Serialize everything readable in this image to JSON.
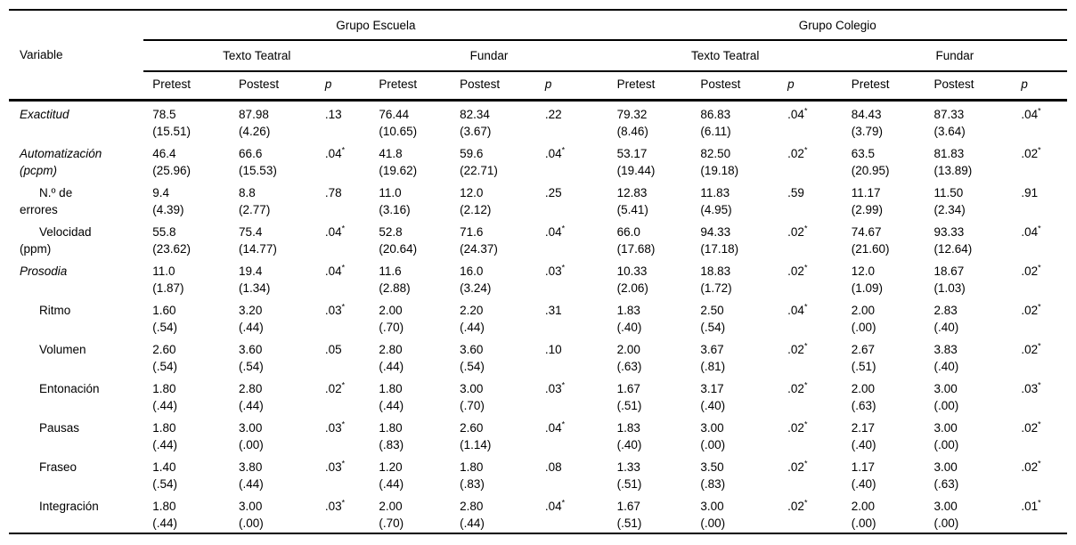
{
  "table": {
    "corner_header": "Variable",
    "asterisk": "*",
    "groups": [
      {
        "label": "Grupo Escuela",
        "conditions": [
          {
            "label": "Texto Teatral"
          },
          {
            "label": "Fundar"
          }
        ]
      },
      {
        "label": "Grupo Colegio",
        "conditions": [
          {
            "label": "Texto Teatral"
          },
          {
            "label": "Fundar"
          }
        ]
      }
    ],
    "measures": {
      "pretest": "Pretest",
      "postest": "Postest",
      "p": "p"
    },
    "rows": [
      {
        "label_lines": [
          "Exactitud"
        ],
        "italic": true,
        "indent": false,
        "cells": [
          {
            "v": "78.5",
            "sd": "(15.51)"
          },
          {
            "v": "87.98",
            "sd": "(4.26)"
          },
          {
            "v": ".13",
            "star": false
          },
          {
            "v": "76.44",
            "sd": "(10.65)"
          },
          {
            "v": "82.34",
            "sd": "(3.67)"
          },
          {
            "v": ".22",
            "star": false
          },
          {
            "v": "79.32",
            "sd": "(8.46)"
          },
          {
            "v": "86.83",
            "sd": "(6.11)"
          },
          {
            "v": ".04",
            "star": true
          },
          {
            "v": "84.43",
            "sd": "(3.79)"
          },
          {
            "v": "87.33",
            "sd": "(3.64)"
          },
          {
            "v": ".04",
            "star": true
          }
        ]
      },
      {
        "label_lines": [
          "Automatización",
          "(pcpm)"
        ],
        "italic": true,
        "indent": false,
        "cells": [
          {
            "v": "46.4",
            "sd": "(25.96)"
          },
          {
            "v": "66.6",
            "sd": "(15.53)"
          },
          {
            "v": ".04",
            "star": true
          },
          {
            "v": "41.8",
            "sd": "(19.62)"
          },
          {
            "v": "59.6",
            "sd": "(22.71)"
          },
          {
            "v": ".04",
            "star": true
          },
          {
            "v": "53.17",
            "sd": "(19.44)"
          },
          {
            "v": "82.50",
            "sd": "(19.18)"
          },
          {
            "v": ".02",
            "star": true
          },
          {
            "v": "63.5",
            "sd": "(20.95)"
          },
          {
            "v": "81.83",
            "sd": "(13.89)"
          },
          {
            "v": ".02",
            "star": true
          }
        ]
      },
      {
        "label_lines": [
          "N.º de",
          "errores"
        ],
        "italic": false,
        "indent": true,
        "cells": [
          {
            "v": "9.4",
            "sd": "(4.39)"
          },
          {
            "v": "8.8",
            "sd": "(2.77)"
          },
          {
            "v": ".78",
            "star": false
          },
          {
            "v": "11.0",
            "sd": "(3.16)"
          },
          {
            "v": "12.0",
            "sd": "(2.12)"
          },
          {
            "v": ".25",
            "star": false
          },
          {
            "v": "12.83",
            "sd": "(5.41)"
          },
          {
            "v": "11.83",
            "sd": "(4.95)"
          },
          {
            "v": ".59",
            "star": false
          },
          {
            "v": "11.17",
            "sd": "(2.99)"
          },
          {
            "v": "11.50",
            "sd": "(2.34)"
          },
          {
            "v": ".91",
            "star": false
          }
        ]
      },
      {
        "label_lines": [
          "Velocidad",
          "(ppm)"
        ],
        "italic": false,
        "indent": true,
        "cells": [
          {
            "v": "55.8",
            "sd": "(23.62)"
          },
          {
            "v": "75.4",
            "sd": "(14.77)"
          },
          {
            "v": ".04",
            "star": true
          },
          {
            "v": "52.8",
            "sd": "(20.64)"
          },
          {
            "v": "71.6",
            "sd": "(24.37)"
          },
          {
            "v": ".04",
            "star": true
          },
          {
            "v": "66.0",
            "sd": "(17.68)"
          },
          {
            "v": "94.33",
            "sd": "(17.18)"
          },
          {
            "v": ".02",
            "star": true
          },
          {
            "v": "74.67",
            "sd": "(21.60)"
          },
          {
            "v": "93.33",
            "sd": "(12.64)"
          },
          {
            "v": ".04",
            "star": true
          }
        ]
      },
      {
        "label_lines": [
          "Prosodia"
        ],
        "italic": true,
        "indent": false,
        "cells": [
          {
            "v": "11.0",
            "sd": "(1.87)"
          },
          {
            "v": "19.4",
            "sd": "(1.34)"
          },
          {
            "v": ".04",
            "star": true
          },
          {
            "v": "11.6",
            "sd": "(2.88)"
          },
          {
            "v": "16.0",
            "sd": "(3.24)"
          },
          {
            "v": ".03",
            "star": true
          },
          {
            "v": "10.33",
            "sd": "(2.06)"
          },
          {
            "v": "18.83",
            "sd": "(1.72)"
          },
          {
            "v": ".02",
            "star": true
          },
          {
            "v": "12.0",
            "sd": "(1.09)"
          },
          {
            "v": "18.67",
            "sd": "(1.03)"
          },
          {
            "v": ".02",
            "star": true
          }
        ]
      },
      {
        "label_lines": [
          "Ritmo"
        ],
        "italic": false,
        "indent": true,
        "cells": [
          {
            "v": "1.60",
            "sd": "(.54)"
          },
          {
            "v": "3.20",
            "sd": "(.44)"
          },
          {
            "v": ".03",
            "star": true
          },
          {
            "v": "2.00",
            "sd": "(.70)"
          },
          {
            "v": "2.20",
            "sd": "(.44)"
          },
          {
            "v": ".31",
            "star": false
          },
          {
            "v": "1.83",
            "sd": "(.40)"
          },
          {
            "v": "2.50",
            "sd": "(.54)"
          },
          {
            "v": ".04",
            "star": true
          },
          {
            "v": "2.00",
            "sd": "(.00)"
          },
          {
            "v": "2.83",
            "sd": "(.40)"
          },
          {
            "v": ".02",
            "star": true
          }
        ]
      },
      {
        "label_lines": [
          "Volumen"
        ],
        "italic": false,
        "indent": true,
        "cells": [
          {
            "v": "2.60",
            "sd": "(.54)"
          },
          {
            "v": "3.60",
            "sd": "(.54)"
          },
          {
            "v": ".05",
            "star": false
          },
          {
            "v": "2.80",
            "sd": "(.44)"
          },
          {
            "v": "3.60",
            "sd": "(.54)"
          },
          {
            "v": ".10",
            "star": false
          },
          {
            "v": "2.00",
            "sd": "(.63)"
          },
          {
            "v": "3.67",
            "sd": "(.81)"
          },
          {
            "v": ".02",
            "star": true
          },
          {
            "v": "2.67",
            "sd": "(.51)"
          },
          {
            "v": "3.83",
            "sd": "(.40)"
          },
          {
            "v": ".02",
            "star": true
          }
        ]
      },
      {
        "label_lines": [
          "Entonación"
        ],
        "italic": false,
        "indent": true,
        "cells": [
          {
            "v": "1.80",
            "sd": "(.44)"
          },
          {
            "v": "2.80",
            "sd": "(.44)"
          },
          {
            "v": ".02",
            "star": true
          },
          {
            "v": "1.80",
            "sd": "(.44)"
          },
          {
            "v": "3.00",
            "sd": "(.70)"
          },
          {
            "v": ".03",
            "star": true
          },
          {
            "v": "1.67",
            "sd": "(.51)"
          },
          {
            "v": "3.17",
            "sd": "(.40)"
          },
          {
            "v": ".02",
            "star": true
          },
          {
            "v": "2.00",
            "sd": "(.63)"
          },
          {
            "v": "3.00",
            "sd": "(.00)"
          },
          {
            "v": ".03",
            "star": true
          }
        ]
      },
      {
        "label_lines": [
          "Pausas"
        ],
        "italic": false,
        "indent": true,
        "cells": [
          {
            "v": "1.80",
            "sd": "(.44)"
          },
          {
            "v": "3.00",
            "sd": "(.00)"
          },
          {
            "v": ".03",
            "star": true
          },
          {
            "v": "1.80",
            "sd": "(.83)"
          },
          {
            "v": "2.60",
            "sd": "(1.14)"
          },
          {
            "v": ".04",
            "star": true
          },
          {
            "v": "1.83",
            "sd": "(.40)"
          },
          {
            "v": "3.00",
            "sd": "(.00)"
          },
          {
            "v": ".02",
            "star": true
          },
          {
            "v": "2.17",
            "sd": "(.40)"
          },
          {
            "v": "3.00",
            "sd": "(.00)"
          },
          {
            "v": ".02",
            "star": true
          }
        ]
      },
      {
        "label_lines": [
          "Fraseo"
        ],
        "italic": false,
        "indent": true,
        "cells": [
          {
            "v": "1.40",
            "sd": "(.54)"
          },
          {
            "v": "3.80",
            "sd": "(.44)"
          },
          {
            "v": ".03",
            "star": true
          },
          {
            "v": "1.20",
            "sd": "(.44)"
          },
          {
            "v": "1.80",
            "sd": "(.83)"
          },
          {
            "v": ".08",
            "star": false
          },
          {
            "v": "1.33",
            "sd": "(.51)"
          },
          {
            "v": "3.50",
            "sd": "(.83)"
          },
          {
            "v": ".02",
            "star": true
          },
          {
            "v": "1.17",
            "sd": "(.40)"
          },
          {
            "v": "3.00",
            "sd": "(.63)"
          },
          {
            "v": ".02",
            "star": true
          }
        ]
      },
      {
        "label_lines": [
          "Integración"
        ],
        "italic": false,
        "indent": true,
        "cells": [
          {
            "v": "1.80",
            "sd": "(.44)"
          },
          {
            "v": "3.00",
            "sd": "(.00)"
          },
          {
            "v": ".03",
            "star": true
          },
          {
            "v": "2.00",
            "sd": "(.70)"
          },
          {
            "v": "2.80",
            "sd": "(.44)"
          },
          {
            "v": ".04",
            "star": true
          },
          {
            "v": "1.67",
            "sd": "(.51)"
          },
          {
            "v": "3.00",
            "sd": "(.00)"
          },
          {
            "v": ".02",
            "star": true
          },
          {
            "v": "2.00",
            "sd": "(.00)"
          },
          {
            "v": "3.00",
            "sd": "(.00)"
          },
          {
            "v": ".01",
            "star": true
          }
        ]
      }
    ]
  }
}
